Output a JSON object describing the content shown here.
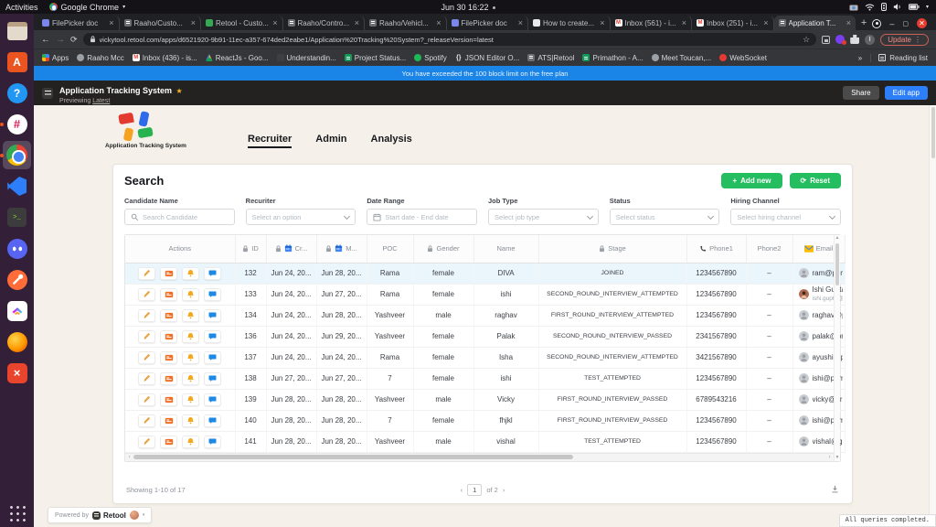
{
  "desktop": {
    "activities": "Activities",
    "app_menu": "Google Chrome",
    "clock": "Jun 30 16:22",
    "dock": [
      {
        "id": "files"
      },
      {
        "id": "software"
      },
      {
        "id": "help"
      },
      {
        "id": "slack",
        "dot": true
      },
      {
        "id": "chrome",
        "active": true,
        "dot": true
      },
      {
        "id": "vscode"
      },
      {
        "id": "terminal"
      },
      {
        "id": "discord"
      },
      {
        "id": "postman"
      },
      {
        "id": "clickup"
      },
      {
        "id": "firefox"
      },
      {
        "id": "xapp"
      }
    ]
  },
  "browser": {
    "tabs": [
      {
        "label": "FilePicker doc",
        "fav": "filepicker"
      },
      {
        "label": "Raaho/Custo...",
        "fav": "retool"
      },
      {
        "label": "Retool - Custo...",
        "fav": "green"
      },
      {
        "label": "Raaho/Contro...",
        "fav": "retool"
      },
      {
        "label": "Raaho/Vehicl...",
        "fav": "retool"
      },
      {
        "label": "FilePicker doc",
        "fav": "filepicker"
      },
      {
        "label": "How to create...",
        "fav": "light"
      },
      {
        "label": "Inbox (561) - i...",
        "fav": "gmail"
      },
      {
        "label": "Inbox (251) - i...",
        "fav": "gmail"
      },
      {
        "label": "Application T...",
        "fav": "retool",
        "active": true
      }
    ],
    "url": "vickytool.retool.com/apps/d6521920-9b91-11ec-a357-674ded2eabe1/Application%20Tracking%20System?_releaseVersion=latest",
    "profile_initial": "I",
    "update_label": "Update",
    "bookmarks": [
      {
        "label": "Apps",
        "fav": "grid"
      },
      {
        "label": "Raaho Mcc",
        "fav": "globe"
      },
      {
        "label": "Inbox (436) - is...",
        "fav": "gmail"
      },
      {
        "label": "ReactJs - Goo...",
        "fav": "drive"
      },
      {
        "label": "Understandin...",
        "fav": "dark"
      },
      {
        "label": "Project Status...",
        "fav": "sheet"
      },
      {
        "label": "Spotify",
        "fav": "spotify"
      },
      {
        "label": "JSON Editor O...",
        "fav": "json"
      },
      {
        "label": "ATS|Retool",
        "fav": "retool"
      },
      {
        "label": "Primathon - A...",
        "fav": "sheet"
      },
      {
        "label": "Meet Toucan,...",
        "fav": "globe"
      },
      {
        "label": "WebSocket",
        "fav": "ws"
      }
    ],
    "overflow_chevron": "»",
    "reading_list": "Reading list"
  },
  "banner": "You have exceeded the 100 block limit on the free plan",
  "retool_header": {
    "title": "Application Tracking System",
    "star": "★",
    "subtitle_prefix": "Previewing",
    "subtitle_link": "Latest",
    "share_label": "Share",
    "edit_label": "Edit app"
  },
  "app": {
    "logo_title": "Application Tracking System",
    "nav": [
      {
        "label": "Recruiter",
        "active": true
      },
      {
        "label": "Admin",
        "active": false
      },
      {
        "label": "Analysis",
        "active": false
      }
    ],
    "search": {
      "title": "Search",
      "add_new_label": "Add new",
      "reset_label": "Reset",
      "filters": [
        {
          "label": "Candidate Name",
          "placeholder": "Search Candidate",
          "type": "search"
        },
        {
          "label": "Recuriter",
          "placeholder": "Select an option",
          "type": "select"
        },
        {
          "label": "Date Range",
          "placeholder": "Start date  -  End date",
          "type": "date"
        },
        {
          "label": "Job Type",
          "placeholder": "Select job type",
          "type": "select"
        },
        {
          "label": "Status",
          "placeholder": "Select status",
          "type": "select"
        },
        {
          "label": "Hiring Channel",
          "placeholder": "Select hiring channel",
          "type": "select"
        }
      ]
    },
    "table": {
      "columns": [
        {
          "label": "Actions"
        },
        {
          "label": "ID",
          "lock": true
        },
        {
          "label": "Cr...",
          "lock": true,
          "cal": true
        },
        {
          "label": "M...",
          "lock": true,
          "cal": true
        },
        {
          "label": "POC"
        },
        {
          "label": "Gender",
          "lock": true
        },
        {
          "label": "Name"
        },
        {
          "label": "Stage",
          "lock": true
        },
        {
          "label": "Phone1",
          "phone": true
        },
        {
          "label": "Phone2"
        },
        {
          "label": "Email",
          "mail": true
        }
      ],
      "rows": [
        {
          "id": "132",
          "created": "Jun 24, 20...",
          "modified": "Jun 28, 20...",
          "poc": "Rama",
          "gender": "female",
          "name": "DIVA",
          "stage": "JOINED",
          "phone1": "1234567890",
          "phone2": "–",
          "email": "ram@primat...",
          "selected": true
        },
        {
          "id": "133",
          "created": "Jun 24, 20...",
          "modified": "Jun 27, 20...",
          "poc": "Rama",
          "gender": "female",
          "name": "ishi",
          "stage": "SECOND_ROUND_INTERVIEW_ATTEMPTED",
          "phone1": "1234567890",
          "phone2": "–",
          "email": "Ishi Gupta",
          "email_sub": "ishi.gupta@p...",
          "photo": true
        },
        {
          "id": "134",
          "created": "Jun 24, 20...",
          "modified": "Jun 28, 20...",
          "poc": "Yashveer",
          "gender": "male",
          "name": "raghav",
          "stage": "FIRST_ROUND_INTERVIEW_ATTEMPTED",
          "phone1": "1234567890",
          "phone2": "–",
          "email": "raghav@pri..."
        },
        {
          "id": "136",
          "created": "Jun 24, 20...",
          "modified": "Jun 29, 20...",
          "poc": "Yashveer",
          "gender": "female",
          "name": "Palak",
          "stage": "SECOND_ROUND_INTERVIEW_PASSED",
          "phone1": "2341567890",
          "phone2": "–",
          "email": "palak@prim..."
        },
        {
          "id": "137",
          "created": "Jun 24, 20...",
          "modified": "Jun 24, 20...",
          "poc": "Rama",
          "gender": "female",
          "name": "Isha",
          "stage": "SECOND_ROUND_INTERVIEW_ATTEMPTED",
          "phone1": "3421567890",
          "phone2": "–",
          "email": "ayushi@prin..."
        },
        {
          "id": "138",
          "created": "Jun 27, 20...",
          "modified": "Jun 27, 20...",
          "poc": "7",
          "gender": "female",
          "name": "ishi",
          "stage": "TEST_ATTEMPTED",
          "phone1": "1234567890",
          "phone2": "–",
          "email": "ishi@primat..."
        },
        {
          "id": "139",
          "created": "Jun 28, 20...",
          "modified": "Jun 28, 20...",
          "poc": "Yashveer",
          "gender": "male",
          "name": "Vicky",
          "stage": "FIRST_ROUND_INTERVIEW_PASSED",
          "phone1": "6789543216",
          "phone2": "–",
          "email": "vicky@prim..."
        },
        {
          "id": "140",
          "created": "Jun 28, 20...",
          "modified": "Jun 28, 20...",
          "poc": "7",
          "gender": "female",
          "name": "fhjkl",
          "stage": "FIRST_ROUND_INTERVIEW_PASSED",
          "phone1": "1234567890",
          "phone2": "–",
          "email": "ishi@primat..."
        },
        {
          "id": "141",
          "created": "Jun 28, 20...",
          "modified": "Jun 28, 20...",
          "poc": "Yashveer",
          "gender": "male",
          "name": "vishal",
          "stage": "TEST_ATTEMPTED",
          "phone1": "1234567890",
          "phone2": "–",
          "email": "vishal@gma..."
        }
      ],
      "footer": {
        "showing": "Showing 1-10 of 17",
        "prev": "‹",
        "page": "1",
        "of_label": "of 2",
        "next": "›"
      }
    }
  },
  "powered_by": {
    "prefix": "Powered by",
    "brand": "Retool"
  },
  "status_text": "All queries completed.",
  "colors": {
    "accent_green": "#24bd5f",
    "accent_blue": "#2d7ff9",
    "banner_blue": "#1b84e7",
    "selected_row": "#eaf5fc"
  }
}
